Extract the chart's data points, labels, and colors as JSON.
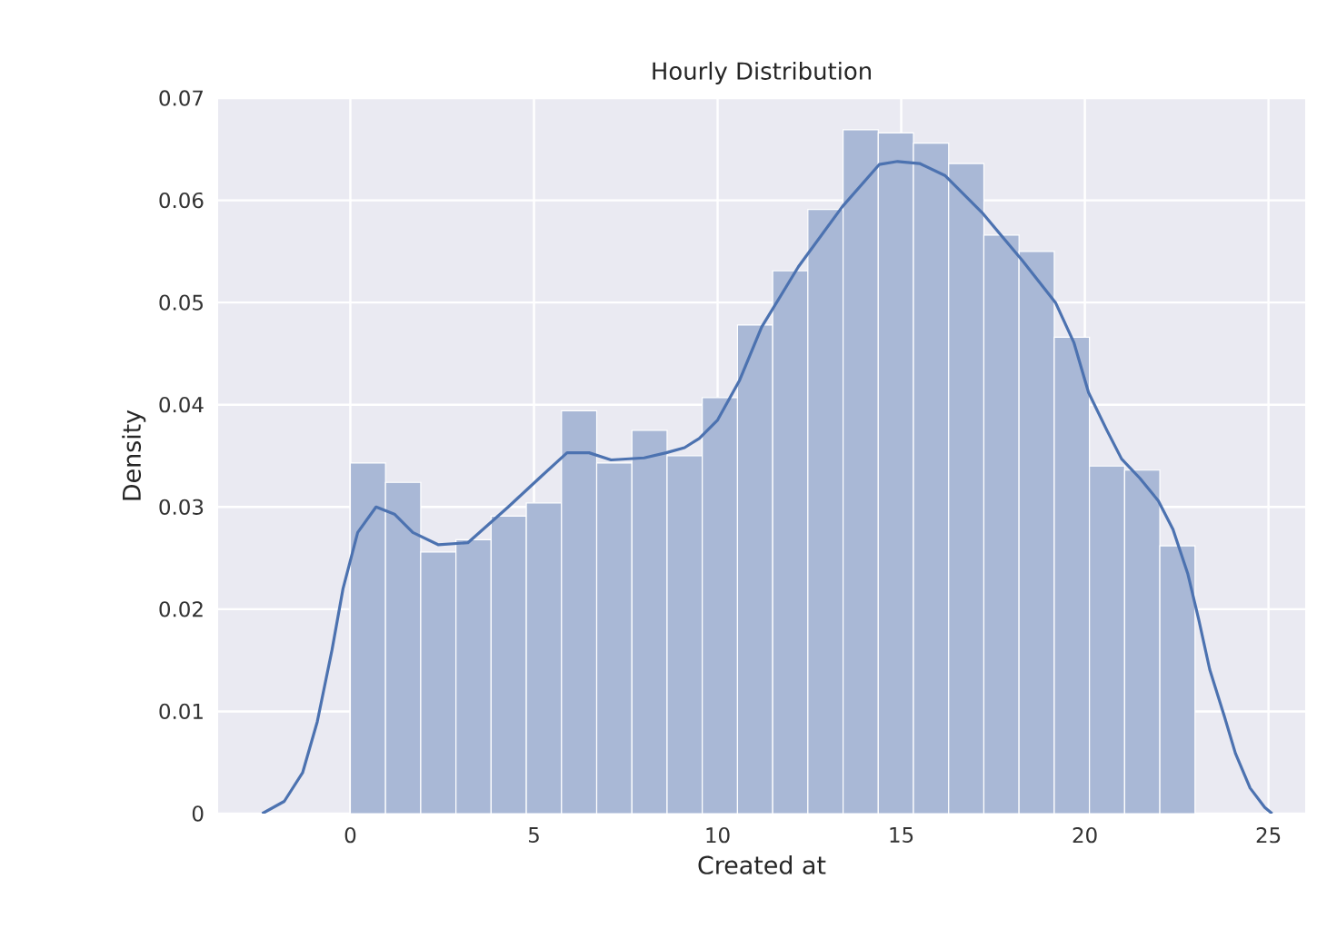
{
  "chart_data": {
    "type": "histogram",
    "title": "Hourly Distribution",
    "xlabel": "Created at",
    "ylabel": "Density",
    "xlim": [
      -3.6,
      26
    ],
    "ylim": [
      0,
      0.07
    ],
    "xticks": [
      0,
      5,
      10,
      15,
      20,
      25
    ],
    "yticks": [
      0,
      0.01,
      0.02,
      0.03,
      0.04,
      0.05,
      0.06,
      0.07
    ],
    "grid": true,
    "series": [
      {
        "type": "histogram",
        "color": "#a9b8d6",
        "bins": [
          0,
          0.958,
          1.917,
          2.875,
          3.833,
          4.792,
          5.75,
          6.708,
          7.667,
          8.625,
          9.583,
          10.542,
          11.5,
          12.458,
          13.417,
          14.375,
          15.333,
          16.292,
          17.25,
          18.208,
          19.167,
          20.125,
          21.083,
          22.042,
          23
        ],
        "values": [
          0.0343,
          0.0324,
          0.0256,
          0.0268,
          0.0291,
          0.0304,
          0.0394,
          0.0343,
          0.0375,
          0.035,
          0.0407,
          0.0478,
          0.0531,
          0.0591,
          0.0669,
          0.0666,
          0.0656,
          0.0636,
          0.0566,
          0.055,
          0.0466,
          0.034,
          0.0336,
          0.0262
        ]
      },
      {
        "type": "line",
        "color": "#4c72b0",
        "x": [
          -2.4,
          -1.8,
          -1.3,
          -0.9,
          -0.5,
          -0.2,
          0.2,
          0.7,
          1.2,
          1.7,
          2.4,
          3.2,
          4.3,
          5.2,
          5.9,
          6.5,
          7.1,
          8.0,
          8.6,
          9.1,
          9.5,
          10.0,
          10.6,
          11.2,
          12.2,
          13.4,
          14.4,
          14.9,
          15.5,
          16.2,
          17.2,
          18.3,
          19.2,
          19.7,
          20.1,
          20.6,
          21.0,
          21.5,
          22.0,
          22.4,
          22.8,
          23.1,
          23.4,
          23.8,
          24.1,
          24.5,
          24.9,
          25.1
        ],
        "values": [
          0,
          0.0012,
          0.004,
          0.009,
          0.016,
          0.022,
          0.0275,
          0.03,
          0.0293,
          0.0275,
          0.0263,
          0.0265,
          0.03,
          0.033,
          0.0353,
          0.0353,
          0.0346,
          0.0348,
          0.0353,
          0.0358,
          0.0367,
          0.0385,
          0.0424,
          0.0476,
          0.0535,
          0.0594,
          0.0635,
          0.0638,
          0.0636,
          0.0624,
          0.0588,
          0.0541,
          0.05,
          0.0461,
          0.0412,
          0.0375,
          0.0347,
          0.0328,
          0.0306,
          0.0278,
          0.0235,
          0.019,
          0.0141,
          0.0095,
          0.0059,
          0.0025,
          0.0006,
          0
        ]
      }
    ]
  }
}
